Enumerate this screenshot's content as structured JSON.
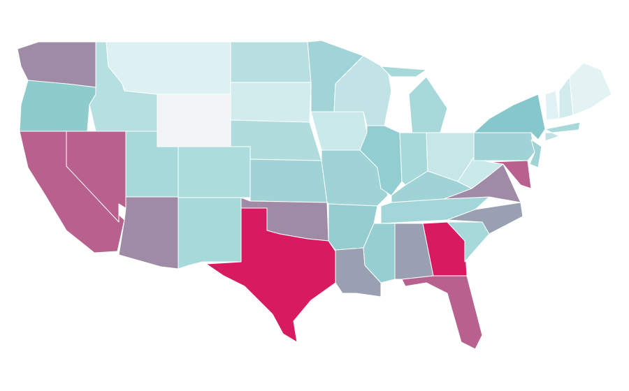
{
  "map": {
    "region_fills": [
      "#a08ba6",
      "#8ecbcb",
      "#b8608e",
      "#b8608e",
      "#b5dfe0",
      "#ddf0f2",
      "#f2f3f4",
      "#a7d8da",
      "#a08ba6",
      "#addcdc",
      "#a7d8da",
      "#b8dfe0",
      "#d2ecee",
      "#b1dcdd",
      "#9fd3d5",
      "#a08ba6",
      "#d81b60",
      "#a1d4d7",
      "#cae9eb",
      "#9fd3d5",
      "#94ccd0",
      "#98a0b2",
      "#c2e3e6",
      "#91cdd1",
      "#a7d8da",
      "#a7d8da",
      "#a7d8da",
      "#c7e6e8",
      "#9fd3d5",
      "#a3d6d8",
      "#96cfd1",
      "#98a0b2",
      "#d81b60",
      "#b8608e",
      "#a7d8da",
      "#98a0b2",
      "#a08ba6",
      "#cae9eb",
      "#9fd3d5",
      "#86c7cc",
      "#b8608e",
      "#9fd3d5",
      "#a7d8da",
      "#c2e3e6",
      "#e0f2f3",
      "#d2ecee",
      "#e3f3f4"
    ],
    "border_color": "#ffffff",
    "background": "#ffffff"
  }
}
